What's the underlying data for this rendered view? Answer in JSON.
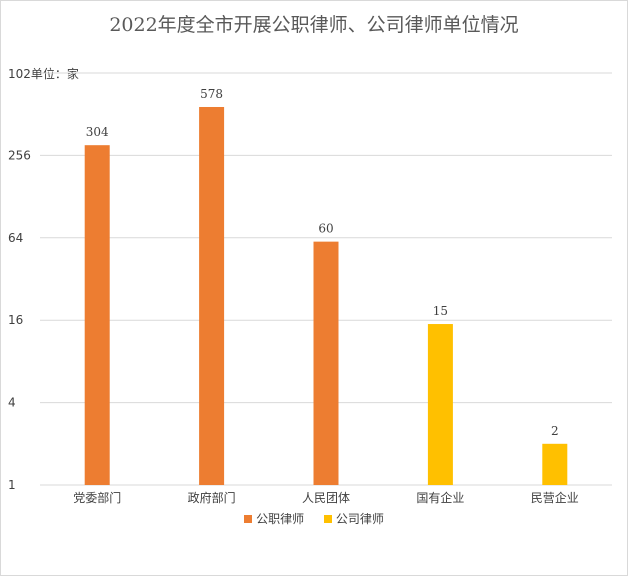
{
  "title": "2022年度全市开展公职律师、公司律师单位情况",
  "y_unit_label": "102单位：家",
  "chart_data": {
    "type": "bar",
    "title": "2022年度全市开展公职律师、公司律师单位情况",
    "ylabel": "102单位：家",
    "y_scale": "log2",
    "ylim": [
      1,
      1024
    ],
    "y_ticks": [
      1,
      4,
      16,
      64,
      256
    ],
    "grid": true,
    "legend_position": "bottom",
    "categories": [
      "党委部门",
      "政府部门",
      "人民团体",
      "国有企业",
      "民营企业"
    ],
    "series": [
      {
        "name": "公职律师",
        "color": "#ed7d31",
        "values": [
          304,
          578,
          60,
          null,
          null
        ]
      },
      {
        "name": "公司律师",
        "color": "#ffc000",
        "values": [
          null,
          null,
          null,
          15,
          2
        ]
      }
    ]
  }
}
